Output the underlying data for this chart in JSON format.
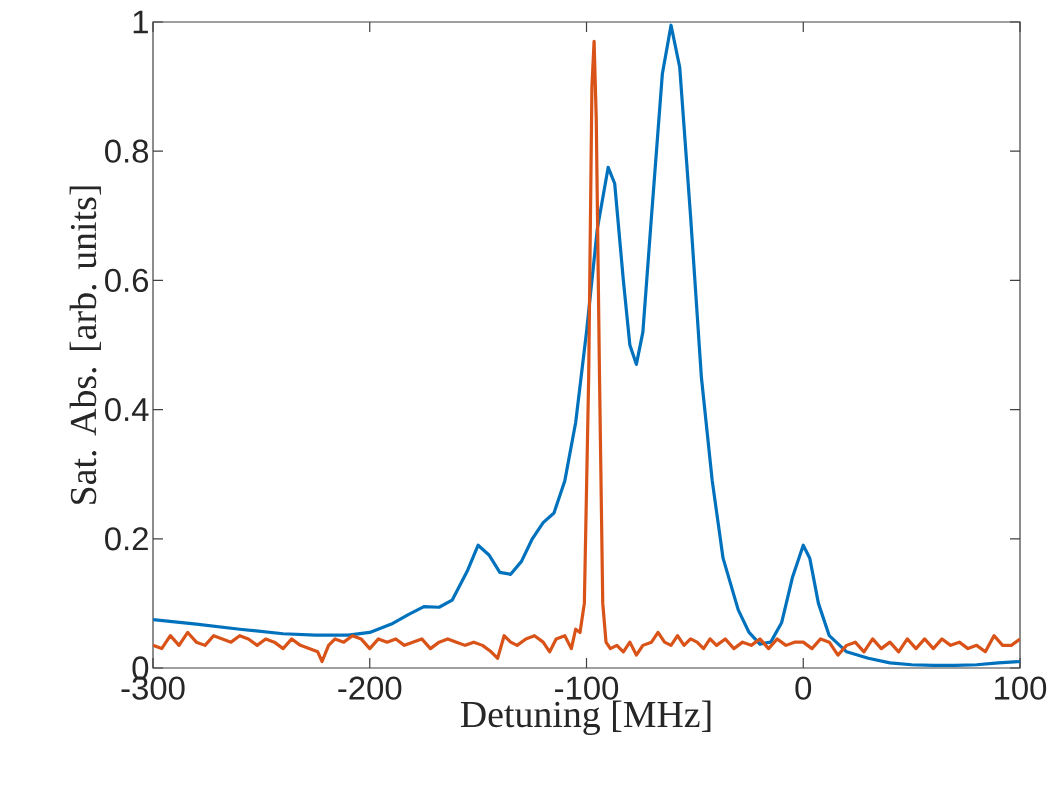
{
  "chart_data": {
    "type": "line",
    "xlabel": "Detuning [MHz]",
    "ylabel": "Sat. Abs. [arb. units]",
    "xlim": [
      -300,
      100
    ],
    "ylim": [
      0,
      1
    ],
    "xticks": [
      -300,
      -200,
      -100,
      0,
      100
    ],
    "yticks": [
      0,
      0.2,
      0.4,
      0.6,
      0.8,
      1
    ],
    "grid": false,
    "series": [
      {
        "color": "#0072bd",
        "x": [
          -300,
          -280,
          -260,
          -240,
          -225,
          -210,
          -200,
          -190,
          -182,
          -175,
          -168,
          -162,
          -155,
          -150,
          -145,
          -140,
          -135,
          -130,
          -125,
          -120,
          -115,
          -110,
          -105,
          -100,
          -95,
          -90,
          -87,
          -83,
          -80,
          -77,
          -74,
          -70,
          -65,
          -61,
          -57,
          -52,
          -47,
          -42,
          -37,
          -30,
          -25,
          -20,
          -15,
          -10,
          -5,
          0,
          3,
          7,
          12,
          20,
          30,
          40,
          50,
          60,
          70,
          80,
          90,
          100
        ],
        "values": [
          0.075,
          0.068,
          0.06,
          0.053,
          0.051,
          0.051,
          0.055,
          0.068,
          0.083,
          0.095,
          0.094,
          0.105,
          0.15,
          0.19,
          0.175,
          0.148,
          0.145,
          0.165,
          0.2,
          0.225,
          0.24,
          0.29,
          0.38,
          0.52,
          0.68,
          0.775,
          0.75,
          0.6,
          0.5,
          0.47,
          0.52,
          0.7,
          0.92,
          0.995,
          0.93,
          0.7,
          0.45,
          0.29,
          0.17,
          0.09,
          0.055,
          0.037,
          0.04,
          0.07,
          0.14,
          0.19,
          0.17,
          0.1,
          0.05,
          0.025,
          0.015,
          0.008,
          0.005,
          0.004,
          0.004,
          0.005,
          0.008,
          0.01
        ]
      },
      {
        "color": "#d95319",
        "x": [
          -300,
          -296,
          -292,
          -288,
          -284,
          -280,
          -276,
          -272,
          -268,
          -264,
          -260,
          -256,
          -252,
          -248,
          -244,
          -240,
          -236,
          -232,
          -228,
          -224,
          -222,
          -219,
          -216,
          -212,
          -208,
          -204,
          -200,
          -196,
          -192,
          -188,
          -184,
          -180,
          -176,
          -172,
          -168,
          -164,
          -160,
          -156,
          -152,
          -148,
          -144,
          -141,
          -138,
          -135,
          -132,
          -128,
          -124,
          -120,
          -117,
          -114,
          -110,
          -107,
          -105,
          -103,
          -101,
          -99,
          -97.5,
          -96.5,
          -95.5,
          -94,
          -92.5,
          -91,
          -89,
          -86,
          -83,
          -80,
          -77,
          -74,
          -70,
          -67,
          -64,
          -61,
          -58,
          -55,
          -52,
          -49,
          -46,
          -43,
          -40,
          -36,
          -32,
          -28,
          -24,
          -20,
          -16,
          -12,
          -8,
          -4,
          0,
          4,
          8,
          12,
          16,
          20,
          24,
          28,
          32,
          36,
          40,
          44,
          48,
          52,
          56,
          60,
          64,
          68,
          72,
          76,
          80,
          84,
          88,
          92,
          96,
          100
        ],
        "values": [
          0.035,
          0.03,
          0.05,
          0.035,
          0.055,
          0.04,
          0.035,
          0.05,
          0.045,
          0.04,
          0.05,
          0.045,
          0.035,
          0.045,
          0.04,
          0.03,
          0.045,
          0.035,
          0.03,
          0.025,
          0.01,
          0.035,
          0.045,
          0.04,
          0.05,
          0.045,
          0.03,
          0.045,
          0.04,
          0.045,
          0.035,
          0.04,
          0.045,
          0.03,
          0.04,
          0.045,
          0.04,
          0.035,
          0.04,
          0.035,
          0.025,
          0.015,
          0.05,
          0.04,
          0.035,
          0.045,
          0.05,
          0.04,
          0.025,
          0.045,
          0.05,
          0.03,
          0.06,
          0.055,
          0.1,
          0.45,
          0.9,
          0.97,
          0.85,
          0.45,
          0.1,
          0.04,
          0.03,
          0.035,
          0.025,
          0.04,
          0.02,
          0.035,
          0.04,
          0.055,
          0.04,
          0.035,
          0.05,
          0.035,
          0.045,
          0.04,
          0.03,
          0.045,
          0.035,
          0.045,
          0.03,
          0.04,
          0.035,
          0.045,
          0.03,
          0.045,
          0.035,
          0.04,
          0.04,
          0.03,
          0.045,
          0.04,
          0.02,
          0.035,
          0.04,
          0.025,
          0.045,
          0.03,
          0.04,
          0.025,
          0.045,
          0.03,
          0.045,
          0.03,
          0.045,
          0.035,
          0.04,
          0.03,
          0.035,
          0.025,
          0.05,
          0.035,
          0.035,
          0.045
        ]
      }
    ]
  }
}
